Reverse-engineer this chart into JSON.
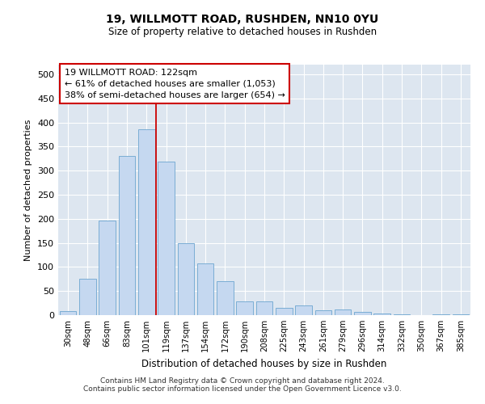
{
  "title1": "19, WILLMOTT ROAD, RUSHDEN, NN10 0YU",
  "title2": "Size of property relative to detached houses in Rushden",
  "xlabel": "Distribution of detached houses by size in Rushden",
  "ylabel": "Number of detached properties",
  "categories": [
    "30sqm",
    "48sqm",
    "66sqm",
    "83sqm",
    "101sqm",
    "119sqm",
    "137sqm",
    "154sqm",
    "172sqm",
    "190sqm",
    "208sqm",
    "225sqm",
    "243sqm",
    "261sqm",
    "279sqm",
    "296sqm",
    "314sqm",
    "332sqm",
    "350sqm",
    "367sqm",
    "385sqm"
  ],
  "values": [
    8,
    75,
    197,
    331,
    385,
    319,
    150,
    107,
    70,
    28,
    28,
    15,
    20,
    10,
    11,
    6,
    3,
    1,
    0,
    1,
    1
  ],
  "bar_color": "#c5d8f0",
  "bar_edge_color": "#7aadd4",
  "vline_index": 4.5,
  "vline_color": "#cc0000",
  "annotation_text": "19 WILLMOTT ROAD: 122sqm\n← 61% of detached houses are smaller (1,053)\n38% of semi-detached houses are larger (654) →",
  "annotation_box_color": "#cc0000",
  "bg_color": "#dde6f0",
  "footer1": "Contains HM Land Registry data © Crown copyright and database right 2024.",
  "footer2": "Contains public sector information licensed under the Open Government Licence v3.0.",
  "ylim": [
    0,
    520
  ],
  "yticks": [
    0,
    50,
    100,
    150,
    200,
    250,
    300,
    350,
    400,
    450,
    500
  ]
}
